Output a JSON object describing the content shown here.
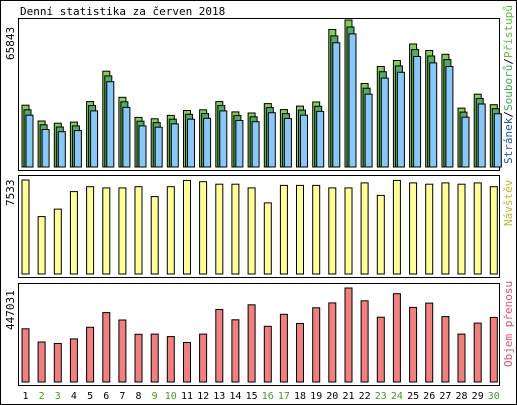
{
  "title": "Denní statistika za červen 2018",
  "colors": {
    "pristupu": "#66bb44",
    "souboru": "#44aa55",
    "stranek": "#2255aa",
    "navstev": "#bbbb33",
    "objem": "#dd5566",
    "day_normal": "#000000",
    "day_weekend": "#449922",
    "bar_hits": "#88cc55",
    "bar_files": "#55aa66",
    "bar_pages": "#88c8f8",
    "bar_visits": "#ffff99",
    "bar_volume": "#f08080"
  },
  "chart_data": [
    {
      "type": "bar",
      "panel": "top",
      "ymax_label": "65843",
      "legend": {
        "pristupu": "Přístupů",
        "sep1": "/",
        "souboru": "Souborů",
        "sep2": "/",
        "stranek": "Stránek"
      },
      "categories": [
        "1",
        "2",
        "3",
        "4",
        "5",
        "6",
        "7",
        "8",
        "9",
        "10",
        "11",
        "12",
        "13",
        "14",
        "15",
        "16",
        "17",
        "18",
        "19",
        "20",
        "21",
        "22",
        "23",
        "24",
        "25",
        "26",
        "27",
        "28",
        "29",
        "30"
      ],
      "ymax": 65843,
      "series": [
        {
          "name": "Přístupů",
          "values": [
            27700,
            20600,
            19600,
            20100,
            29300,
            42900,
            31200,
            22200,
            21600,
            23100,
            25300,
            25600,
            29300,
            24700,
            24200,
            28400,
            25700,
            27300,
            29100,
            61600,
            65843,
            37400,
            45000,
            47700,
            55100,
            52200,
            50500,
            26400,
            32600,
            27900
          ]
        },
        {
          "name": "Souborů",
          "values": [
            26500,
            19800,
            18800,
            19300,
            28400,
            41700,
            30100,
            21400,
            20800,
            22300,
            24500,
            24800,
            28400,
            23900,
            23400,
            27500,
            24800,
            26400,
            28100,
            59600,
            63600,
            36200,
            43600,
            46200,
            53500,
            50600,
            49000,
            25500,
            31600,
            27000
          ]
        },
        {
          "name": "Stránek",
          "values": [
            25000,
            18600,
            17600,
            18100,
            26900,
            40000,
            28500,
            20200,
            19600,
            21100,
            23200,
            23600,
            26900,
            22600,
            22100,
            26100,
            23500,
            25000,
            26700,
            57400,
            61400,
            34400,
            41600,
            44200,
            51300,
            48400,
            46800,
            24100,
            30000,
            25600
          ]
        }
      ]
    },
    {
      "type": "bar",
      "panel": "middle",
      "ymax_label": "7533",
      "legend": {
        "navstev": "Návštěv"
      },
      "categories": [
        "1",
        "2",
        "3",
        "4",
        "5",
        "6",
        "7",
        "8",
        "9",
        "10",
        "11",
        "12",
        "13",
        "14",
        "15",
        "16",
        "17",
        "18",
        "19",
        "20",
        "21",
        "22",
        "23",
        "24",
        "25",
        "26",
        "27",
        "28",
        "29",
        "30"
      ],
      "ymax": 7533,
      "series": [
        {
          "name": "Návštěv",
          "values": [
            7533,
            4600,
            5200,
            6600,
            7000,
            6900,
            6900,
            7000,
            6200,
            7000,
            7500,
            7400,
            7200,
            7200,
            6900,
            5700,
            7100,
            7100,
            7100,
            6900,
            6900,
            7300,
            6300,
            7500,
            7300,
            7200,
            7300,
            7200,
            7300,
            7000
          ]
        }
      ]
    },
    {
      "type": "bar",
      "panel": "bottom",
      "ymax_label": "447031",
      "legend": {
        "objem": "Objem přenosu"
      },
      "categories": [
        "1",
        "2",
        "3",
        "4",
        "5",
        "6",
        "7",
        "8",
        "9",
        "10",
        "11",
        "12",
        "13",
        "14",
        "15",
        "16",
        "17",
        "18",
        "19",
        "20",
        "21",
        "22",
        "23",
        "24",
        "25",
        "26",
        "27",
        "28",
        "29",
        "30"
      ],
      "ymax": 447031,
      "series": [
        {
          "name": "Objem přenosu",
          "values": [
            253000,
            190000,
            183000,
            205000,
            260000,
            330000,
            295000,
            227000,
            228000,
            216000,
            188000,
            228000,
            345000,
            296000,
            367000,
            265000,
            322000,
            278000,
            353000,
            376000,
            447031,
            386000,
            308000,
            420000,
            355000,
            375000,
            311000,
            228000,
            280000,
            307000
          ]
        }
      ]
    }
  ],
  "days": [
    {
      "label": "1",
      "weekend": false
    },
    {
      "label": "2",
      "weekend": true
    },
    {
      "label": "3",
      "weekend": true
    },
    {
      "label": "4",
      "weekend": false
    },
    {
      "label": "5",
      "weekend": false
    },
    {
      "label": "6",
      "weekend": false
    },
    {
      "label": "7",
      "weekend": false
    },
    {
      "label": "8",
      "weekend": false
    },
    {
      "label": "9",
      "weekend": true
    },
    {
      "label": "10",
      "weekend": true
    },
    {
      "label": "11",
      "weekend": false
    },
    {
      "label": "12",
      "weekend": false
    },
    {
      "label": "13",
      "weekend": false
    },
    {
      "label": "14",
      "weekend": false
    },
    {
      "label": "15",
      "weekend": false
    },
    {
      "label": "16",
      "weekend": true
    },
    {
      "label": "17",
      "weekend": true
    },
    {
      "label": "18",
      "weekend": false
    },
    {
      "label": "19",
      "weekend": false
    },
    {
      "label": "20",
      "weekend": false
    },
    {
      "label": "21",
      "weekend": false
    },
    {
      "label": "22",
      "weekend": false
    },
    {
      "label": "23",
      "weekend": true
    },
    {
      "label": "24",
      "weekend": true
    },
    {
      "label": "25",
      "weekend": false
    },
    {
      "label": "26",
      "weekend": false
    },
    {
      "label": "27",
      "weekend": false
    },
    {
      "label": "28",
      "weekend": false
    },
    {
      "label": "29",
      "weekend": false
    },
    {
      "label": "30",
      "weekend": true
    }
  ]
}
